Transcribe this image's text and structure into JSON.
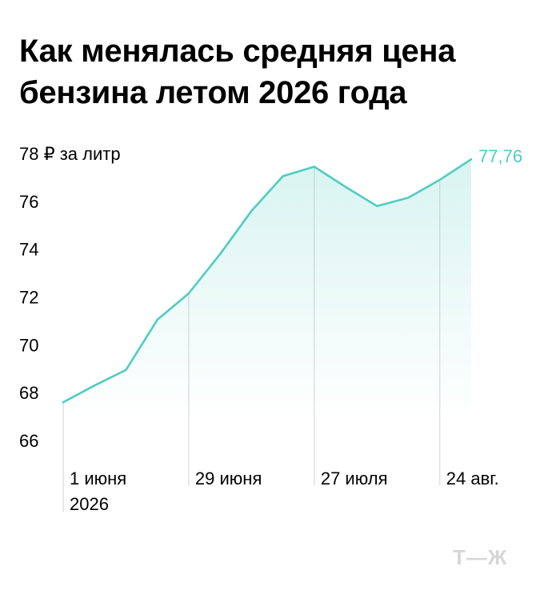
{
  "title": "Как менялась средняя цена бензина летом 2026 года",
  "chart_data": {
    "type": "area",
    "ylabel_unit": "₽ за литр",
    "y_ticks": [
      66,
      68,
      70,
      72,
      74,
      76,
      78
    ],
    "ylim": [
      65,
      79
    ],
    "x": [
      1,
      8,
      15,
      22,
      29,
      36,
      43,
      50,
      57,
      64,
      71,
      78,
      85,
      92
    ],
    "values": [
      67.6,
      68.3,
      68.95,
      71.05,
      72.15,
      73.8,
      75.6,
      77.05,
      77.45,
      76.6,
      75.8,
      76.15,
      76.9,
      77.76
    ],
    "x_ticks": [
      {
        "x": 1,
        "label": "1 июня",
        "label2": "2026"
      },
      {
        "x": 29,
        "label": "29 июня"
      },
      {
        "x": 57,
        "label": "27 июля"
      },
      {
        "x": 85,
        "label": "24 авг."
      }
    ],
    "last_value_label": "77,76",
    "line_color": "#4ecdc0",
    "grid": false
  },
  "logo": "Т—Ж"
}
